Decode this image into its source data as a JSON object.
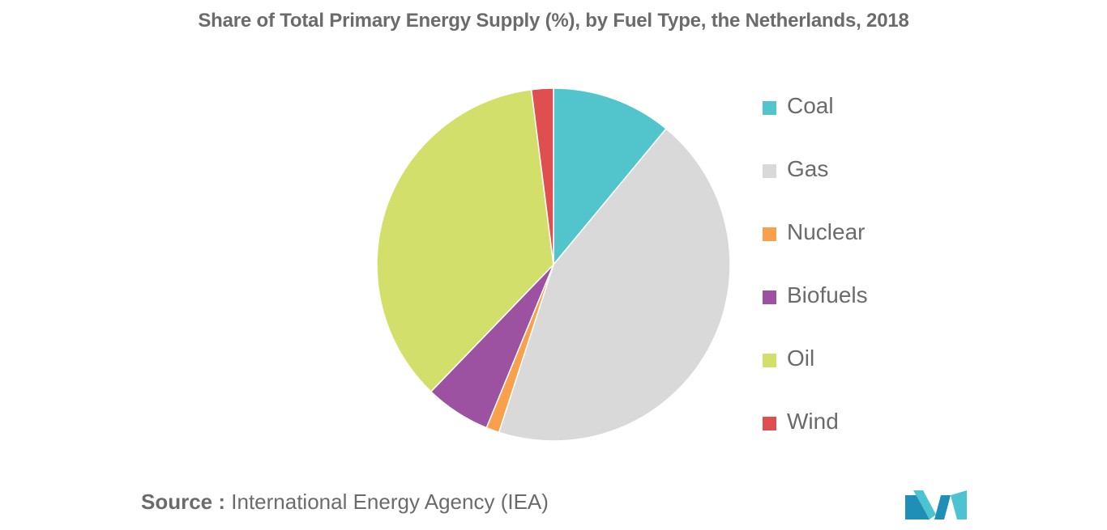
{
  "title": "Share of Total Primary Energy Supply (%), by Fuel Type, the Netherlands, 2018",
  "source": {
    "label": "Source :",
    "text": "International Energy Agency (IEA)"
  },
  "chart_data": {
    "type": "pie",
    "title": "Share of Total Primary Energy Supply (%), by Fuel Type, the Netherlands, 2018",
    "legend_position": "right",
    "slices": [
      {
        "label": "Coal",
        "value": 11.0,
        "color": "#52c4cb"
      },
      {
        "label": "Gas",
        "value": 44.0,
        "color": "#d9d9d9"
      },
      {
        "label": "Nuclear",
        "value": 1.2,
        "color": "#f9a04c"
      },
      {
        "label": "Biofuels",
        "value": 6.0,
        "color": "#9c52a1"
      },
      {
        "label": "Oil",
        "value": 35.8,
        "color": "#d2e06b"
      },
      {
        "label": "Wind",
        "value": 2.0,
        "color": "#e04f4f"
      }
    ]
  },
  "logo": {
    "icon": "mordor-intelligence-logo-icon",
    "colors": [
      "#1f8fb8",
      "#4dc3d1"
    ]
  }
}
